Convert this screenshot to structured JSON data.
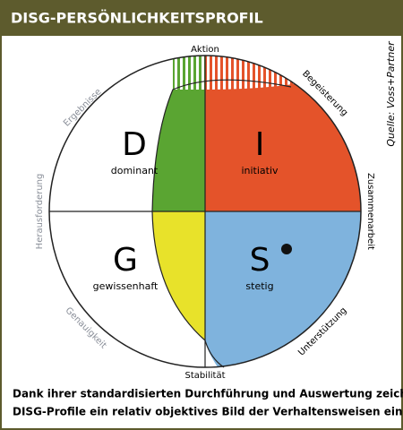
{
  "header": {
    "title": "DISG-PERSÖNLICHKEITSPROFIL"
  },
  "axis_labels": {
    "top": "Aktion",
    "bottom": "Stabilität",
    "left": "Herausforderung",
    "right": "Zusammenarbeit",
    "top_left": "Ergebnisse",
    "top_right": "Begeisterung",
    "bottom_left": "Genauigkeit",
    "bottom_right": "Unterstützung"
  },
  "quadrants": [
    {
      "letter": "D",
      "label": "dominant"
    },
    {
      "letter": "I",
      "label": "initiativ"
    },
    {
      "letter": "G",
      "label": "gewissenhaft"
    },
    {
      "letter": "S",
      "label": "stetig"
    }
  ],
  "source": "Quelle: Voss+Partner",
  "caption": [
    "Dank ihrer standardisierten Durchführung und Auswertung zeichnen",
    "DISG-Profile ein relativ objektives Bild der Verhaltensweisen einer Person."
  ]
}
